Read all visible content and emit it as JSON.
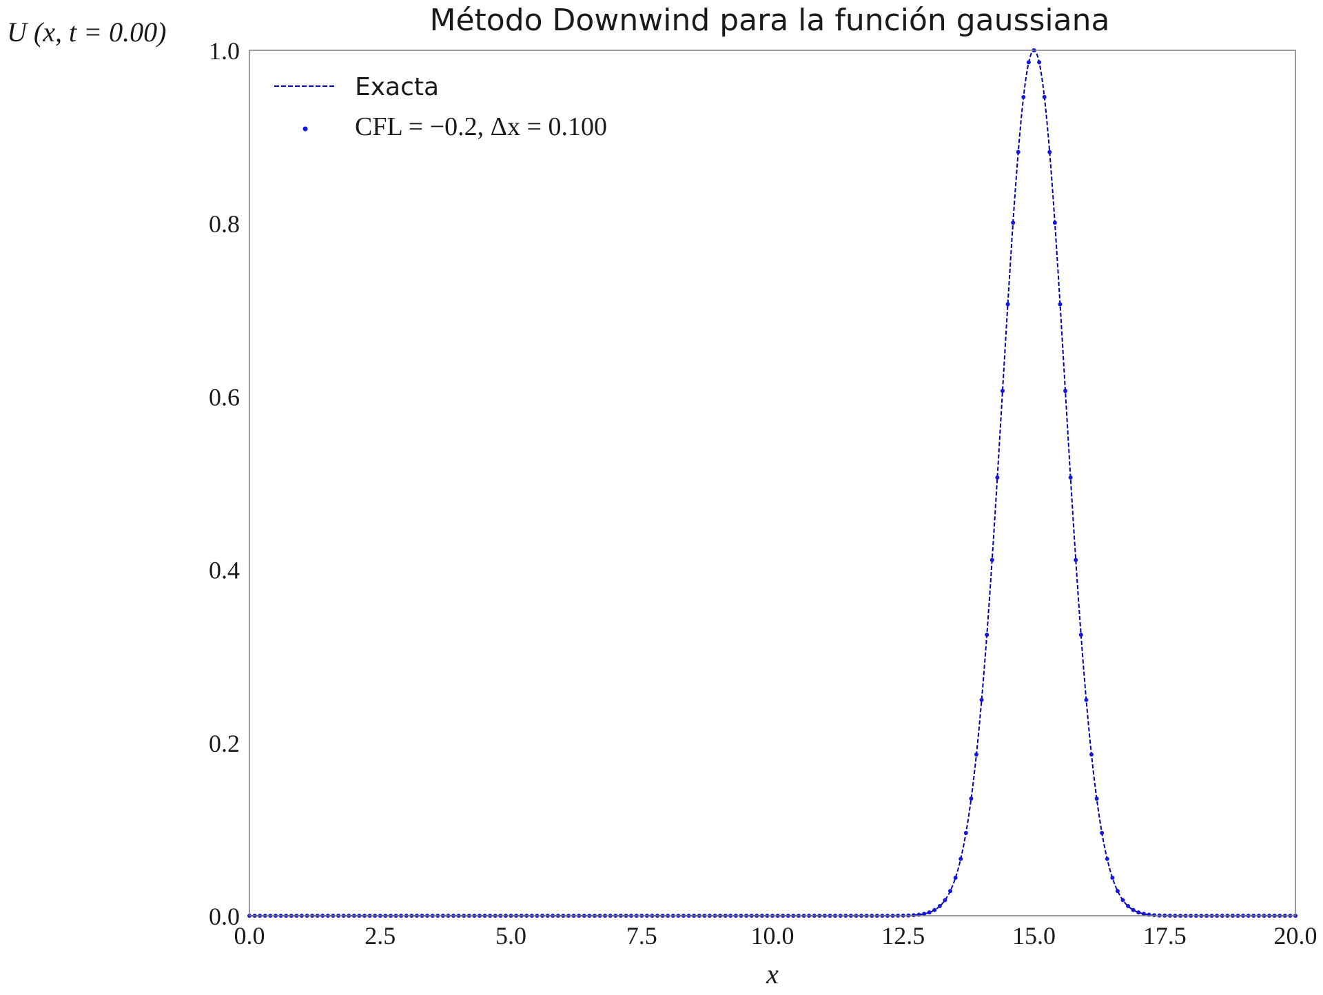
{
  "chart_data": {
    "type": "line",
    "title": "Método Downwind para la función gaussiana",
    "xlabel": "x",
    "ylabel": "U (x, t = 0.00)",
    "xlim": [
      0.0,
      20.0
    ],
    "ylim": [
      0.0,
      1.0
    ],
    "xticks": [
      "0.0",
      "2.5",
      "5.0",
      "7.5",
      "10.0",
      "12.5",
      "15.0",
      "17.5",
      "20.0"
    ],
    "yticks": [
      "0.0",
      "0.2",
      "0.4",
      "0.6",
      "0.8",
      "1.0"
    ],
    "grid": false,
    "legend_position": "top-left",
    "series": [
      {
        "name": "Exacta",
        "style": "dashed-line",
        "color": "#0000a8",
        "function": "gaussian",
        "center": 15.0,
        "sigma": 0.6,
        "amplitude": 1.0
      },
      {
        "name": "CFL = −0.2, Δx = 0.100",
        "style": "dots",
        "color": "#1515e0",
        "x_start": 0.0,
        "x_end": 20.0,
        "dx": 0.1,
        "function": "gaussian",
        "center": 15.0,
        "sigma": 0.6,
        "amplitude": 1.0
      }
    ]
  },
  "legend": {
    "line_label": "Exacta",
    "dots_label": "CFL = −0.2, Δx = 0.100"
  }
}
